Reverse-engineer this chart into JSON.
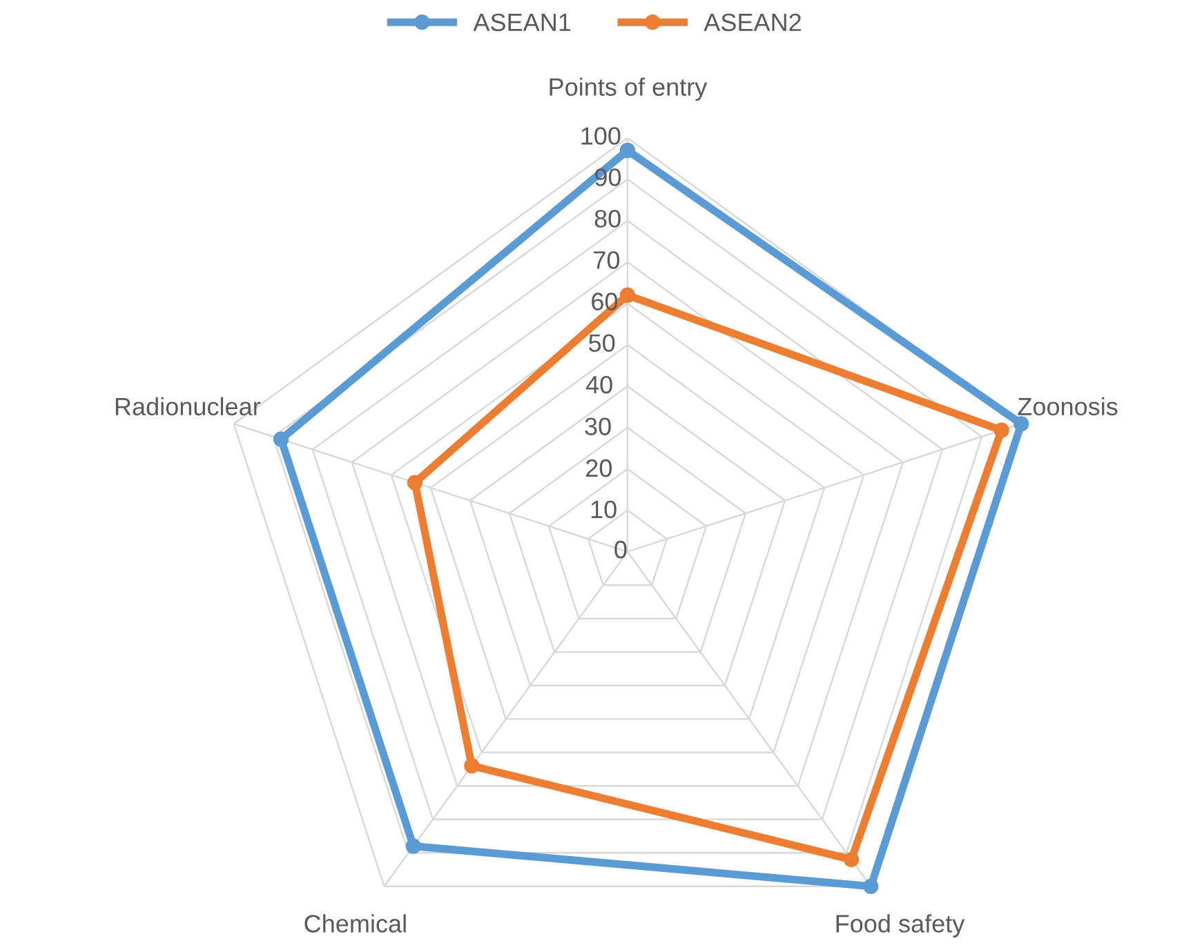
{
  "chart_data": {
    "type": "radar",
    "categories": [
      "Points of entry",
      "Zoonosis",
      "Food safety",
      "Chemical",
      "Radionuclear"
    ],
    "series": [
      {
        "name": "ASEAN1",
        "color": "#5b9bd5",
        "values": [
          97,
          100,
          100,
          88,
          88
        ]
      },
      {
        "name": "ASEAN2",
        "color": "#ed7d31",
        "values": [
          62,
          95,
          92,
          64,
          54
        ]
      }
    ],
    "ylim": [
      0,
      100
    ],
    "yticks": [
      0,
      10,
      20,
      30,
      40,
      50,
      60,
      70,
      80,
      90,
      100
    ],
    "grid": true,
    "legend": "top",
    "marker": "circle",
    "line_style": "solid"
  }
}
